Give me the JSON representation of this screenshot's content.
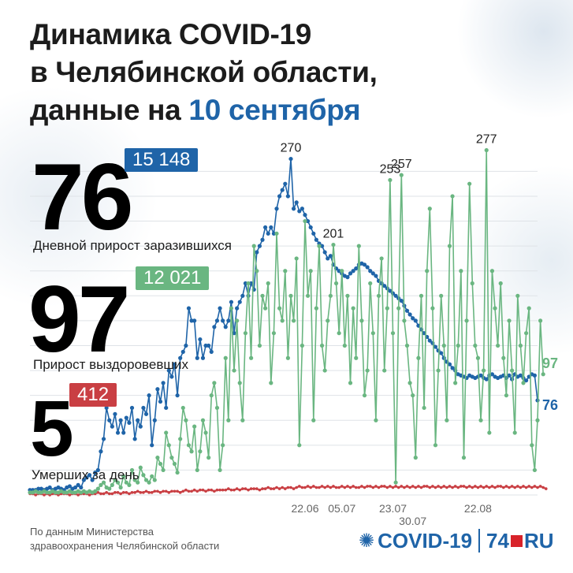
{
  "title": {
    "line1": "Динамика COVID-19",
    "line2": "в Челябинской области,",
    "line3_prefix": "данные на ",
    "line3_accent": "10 сентября"
  },
  "stats": {
    "infected": {
      "daily": "76",
      "total": "15 148",
      "label": "Дневной прирост заразившихся"
    },
    "recovered": {
      "daily": "97",
      "total": "12 021",
      "label": "Прирост выздоровевших"
    },
    "deaths": {
      "daily": "5",
      "total": "412",
      "label": "Умерших за день"
    }
  },
  "footer": {
    "source_line1": "По данным Министерства",
    "source_line2": "здравоохранения Челябинской области",
    "logo_text": "COVID-19",
    "logo_brand_left": "74",
    "logo_brand_right": "RU"
  },
  "colors": {
    "infected": "#1f64a8",
    "recovered": "#6ab681",
    "deaths": "#c93f43",
    "title_accent": "#1f64a8"
  },
  "chart_data": {
    "type": "line",
    "x_tick_labels": [
      "22.06",
      "05.07",
      "23.07",
      "30.07",
      "22.08"
    ],
    "x_tick_days": [
      97,
      110,
      128,
      135,
      158
    ],
    "grid": true,
    "ylim": [
      0,
      290
    ],
    "series": [
      {
        "key": "infected",
        "values": [
          4,
          4,
          4,
          5,
          5,
          4,
          5,
          6,
          4,
          5,
          6,
          5,
          4,
          6,
          7,
          5,
          6,
          8,
          6,
          12,
          14,
          16,
          12,
          18,
          20,
          35,
          45,
          70,
          60,
          55,
          65,
          50,
          60,
          50,
          62,
          58,
          70,
          45,
          60,
          55,
          70,
          65,
          80,
          40,
          60,
          85,
          75,
          90,
          70,
          100,
          95,
          105,
          80,
          110,
          115,
          120,
          150,
          140,
          140,
          110,
          125,
          110,
          120,
          120,
          115,
          135,
          140,
          150,
          140,
          135,
          140,
          155,
          130,
          150,
          155,
          160,
          170,
          160,
          170,
          165,
          195,
          200,
          205,
          215,
          210,
          215,
          210,
          230,
          240,
          245,
          250,
          240,
          270,
          230,
          235,
          228,
          230,
          225,
          220,
          215,
          210,
          205,
          202,
          200,
          195,
          190,
          192,
          185,
          182,
          180,
          178,
          176,
          175,
          178,
          180,
          182,
          185,
          186,
          185,
          183,
          180,
          178,
          176,
          172,
          170,
          168,
          166,
          164,
          162,
          160,
          158,
          156,
          152,
          148,
          145,
          142,
          140,
          136,
          133,
          130,
          127,
          124,
          122,
          119,
          116,
          114,
          110,
          107,
          105,
          102,
          100,
          97,
          96,
          95,
          94,
          96,
          95,
          94,
          95,
          96,
          94,
          93,
          96,
          97,
          95,
          94,
          95,
          96,
          94,
          96,
          93,
          97,
          95,
          96,
          94,
          92,
          95,
          97,
          96,
          76
        ]
      },
      {
        "key": "recovered",
        "values": [
          2,
          2,
          3,
          2,
          2,
          3,
          2,
          2,
          3,
          2,
          2,
          3,
          2,
          2,
          3,
          2,
          2,
          3,
          2,
          3,
          2,
          3,
          2,
          3,
          5,
          8,
          10,
          6,
          5,
          8,
          12,
          10,
          6,
          15,
          10,
          8,
          20,
          12,
          10,
          22,
          16,
          12,
          10,
          15,
          12,
          30,
          25,
          20,
          50,
          40,
          30,
          25,
          18,
          45,
          70,
          60,
          40,
          35,
          55,
          20,
          35,
          60,
          50,
          30,
          80,
          90,
          70,
          20,
          40,
          110,
          60,
          150,
          100,
          140,
          90,
          60,
          130,
          170,
          110,
          200,
          180,
          120,
          160,
          150,
          170,
          90,
          130,
          210,
          150,
          140,
          180,
          110,
          160,
          140,
          190,
          40,
          120,
          220,
          160,
          180,
          60,
          150,
          200,
          120,
          100,
          140,
          160,
          201,
          170,
          130,
          180,
          120,
          160,
          90,
          150,
          110,
          200,
          140,
          80,
          100,
          170,
          130,
          60,
          160,
          190,
          100,
          150,
          253,
          130,
          10,
          150,
          257,
          140,
          120,
          90,
          80,
          30,
          110,
          160,
          70,
          180,
          230,
          150,
          40,
          100,
          160,
          120,
          60,
          200,
          240,
          90,
          120,
          180,
          30,
          140,
          250,
          170,
          120,
          110,
          60,
          100,
          277,
          50,
          180,
          150,
          120,
          170,
          110,
          80,
          140,
          100,
          50,
          160,
          120,
          90,
          130,
          150,
          40,
          20,
          60,
          140,
          97
        ]
      },
      {
        "key": "deaths",
        "values": [
          1,
          1,
          0,
          1,
          1,
          0,
          1,
          0,
          1,
          1,
          0,
          1,
          1,
          1,
          0,
          1,
          1,
          0,
          1,
          1,
          1,
          0,
          1,
          1,
          2,
          1,
          1,
          2,
          1,
          1,
          2,
          2,
          1,
          2,
          2,
          1,
          2,
          2,
          3,
          2,
          2,
          3,
          2,
          2,
          3,
          3,
          2,
          3,
          3,
          2,
          3,
          3,
          3,
          2,
          3,
          4,
          3,
          3,
          4,
          3,
          4,
          4,
          3,
          4,
          4,
          3,
          4,
          4,
          4,
          4,
          5,
          4,
          4,
          5,
          4,
          5,
          5,
          4,
          5,
          5,
          5,
          4,
          5,
          5,
          6,
          5,
          5,
          6,
          5,
          6,
          5,
          6,
          6,
          5,
          6,
          7,
          6,
          6,
          7,
          6,
          7,
          6,
          6,
          7,
          6,
          7,
          6,
          7,
          6,
          6,
          7,
          6,
          7,
          6,
          7,
          6,
          6,
          7,
          6,
          7,
          7,
          6,
          7,
          6,
          7,
          7,
          6,
          7,
          6,
          7,
          6,
          7,
          6,
          7,
          6,
          7,
          6,
          7,
          6,
          7,
          7,
          6,
          7,
          6,
          7,
          6,
          7,
          6,
          7,
          6,
          7,
          6,
          7,
          7,
          6,
          7,
          6,
          7,
          6,
          7,
          6,
          7,
          6,
          7,
          6,
          7,
          7,
          6,
          7,
          6,
          7,
          6,
          7,
          6,
          7,
          6,
          7,
          6,
          7,
          6,
          7,
          6,
          5
        ]
      }
    ],
    "annotations": [
      {
        "series": "infected",
        "index": 92,
        "label": "270"
      },
      {
        "series": "recovered",
        "index": 107,
        "label": "201"
      },
      {
        "series": "recovered",
        "index": 127,
        "label": "253"
      },
      {
        "series": "recovered",
        "index": 131,
        "label": "257"
      },
      {
        "series": "recovered",
        "index": 161,
        "label": "277"
      }
    ],
    "end_labels": [
      {
        "series": "recovered",
        "label": "97"
      },
      {
        "series": "infected",
        "label": "76"
      }
    ]
  }
}
